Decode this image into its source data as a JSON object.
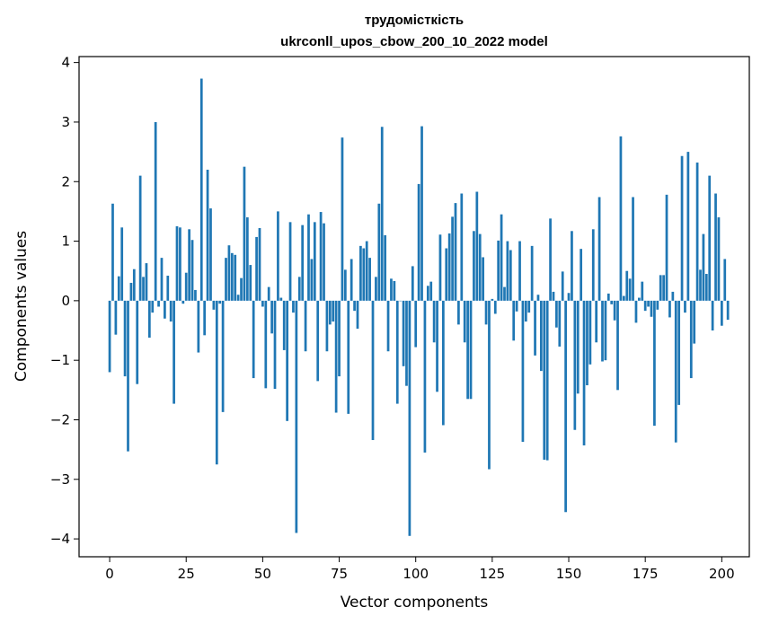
{
  "chart_data": {
    "type": "bar",
    "title": "трудомісткість",
    "subtitle": "ukrconll_upos_cbow_200_10_2022 model",
    "xlabel": "Vector components",
    "ylabel": "Components values",
    "xlim": [
      -10,
      209
    ],
    "ylim": [
      -4.3,
      4.1
    ],
    "xticks": [
      0,
      25,
      50,
      75,
      100,
      125,
      150,
      175,
      200
    ],
    "yticks": [
      -4,
      -3,
      -2,
      -1,
      0,
      1,
      2,
      3,
      4
    ],
    "xtick_labels": [
      "0",
      "25",
      "50",
      "75",
      "100",
      "125",
      "150",
      "175",
      "200"
    ],
    "ytick_labels": [
      "−4",
      "−3",
      "−2",
      "−1",
      "0",
      "1",
      "2",
      "3",
      "4"
    ],
    "color": "#1f77b4",
    "grid": false,
    "values": [
      -1.2,
      1.63,
      -0.57,
      0.41,
      1.23,
      -1.27,
      -2.53,
      0.3,
      0.53,
      -1.4,
      2.1,
      0.4,
      0.63,
      -0.62,
      -0.2,
      3.0,
      -0.1,
      0.72,
      -0.3,
      0.42,
      -0.35,
      -1.73,
      1.25,
      1.23,
      -0.05,
      0.47,
      1.2,
      1.02,
      0.18,
      -0.87,
      3.73,
      -0.58,
      2.2,
      1.55,
      -0.15,
      -2.75,
      -0.05,
      -1.87,
      0.72,
      0.93,
      0.8,
      0.77,
      0.1,
      0.38,
      2.25,
      1.4,
      0.6,
      -1.3,
      1.07,
      1.22,
      -0.1,
      -1.47,
      0.23,
      -0.55,
      -1.48,
      1.5,
      0.05,
      -0.83,
      -2.02,
      1.32,
      -0.2,
      -3.9,
      0.4,
      1.27,
      -0.85,
      1.45,
      0.7,
      1.32,
      -1.35,
      1.49,
      1.3,
      -0.85,
      -0.4,
      -0.35,
      -1.88,
      -1.27,
      2.74,
      0.52,
      -1.9,
      0.7,
      -0.17,
      -0.47,
      0.92,
      0.88,
      1.0,
      0.72,
      -2.34,
      0.4,
      1.63,
      2.92,
      1.1,
      -0.85,
      0.37,
      0.33,
      -1.73,
      0.0,
      -1.1,
      -1.43,
      -3.95,
      0.58,
      -0.78,
      1.96,
      2.93,
      -2.55,
      0.25,
      0.32,
      -0.7,
      -1.53,
      1.11,
      -2.09,
      0.88,
      1.13,
      1.41,
      1.64,
      -0.4,
      1.8,
      -0.7,
      -1.65,
      -1.65,
      1.17,
      1.83,
      1.12,
      0.73,
      -0.4,
      -2.83,
      0.03,
      -0.22,
      1.01,
      1.45,
      0.23,
      1.0,
      0.85,
      -0.67,
      -0.18,
      1.0,
      -2.37,
      -0.35,
      -0.2,
      0.92,
      -0.92,
      0.1,
      -1.18,
      -2.67,
      -2.68,
      1.38,
      0.15,
      -0.45,
      -0.77,
      0.49,
      -3.55,
      0.13,
      1.17,
      -2.17,
      -1.56,
      0.87,
      -2.43,
      -1.42,
      -1.07,
      1.2,
      -0.7,
      1.74,
      -1.02,
      -1.0,
      0.12,
      -0.06,
      -0.33,
      -1.5,
      2.76,
      0.08,
      0.5,
      0.37,
      1.74,
      -0.37,
      0.05,
      0.32,
      -0.17,
      -0.1,
      -0.27,
      -2.1,
      -0.15,
      0.43,
      0.43,
      1.78,
      -0.28,
      0.15,
      -2.38,
      -1.75,
      2.43,
      -0.2,
      2.5,
      -1.3,
      -0.72,
      2.32,
      0.52,
      1.12,
      0.45,
      2.1,
      -0.5,
      1.8,
      1.4,
      -0.42,
      0.7,
      -0.32
    ]
  }
}
